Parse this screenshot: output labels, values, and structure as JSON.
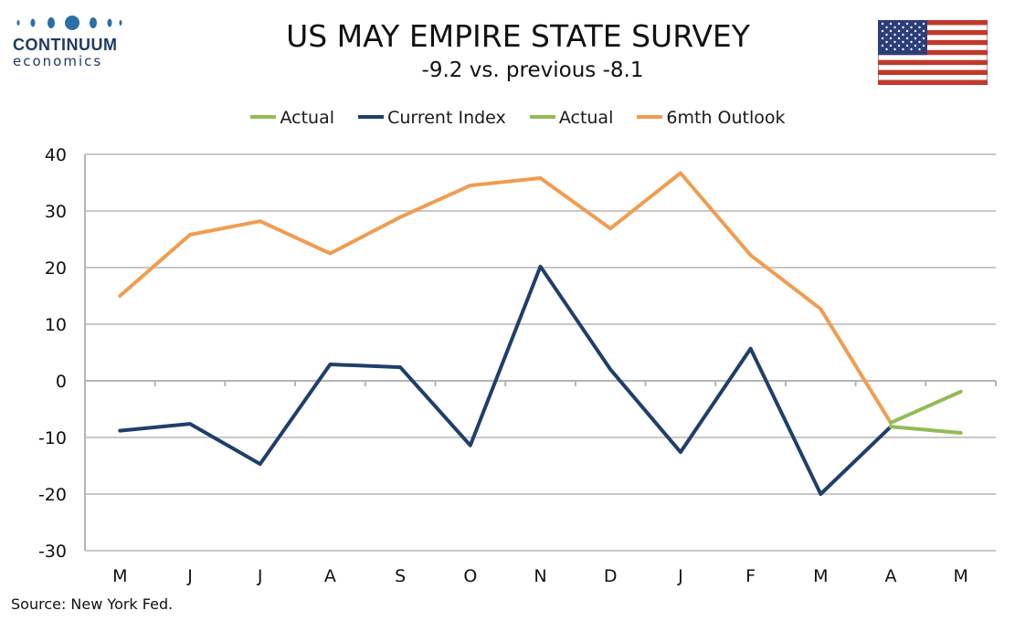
{
  "header": {
    "logo_name": "CONTINUUM",
    "logo_sub": "economics",
    "title": "US MAY EMPIRE STATE SURVEY",
    "subtitle": "-9.2 vs. previous -8.1"
  },
  "footer": {
    "source": "Source: New York Fed."
  },
  "flag_icon": "us-flag-icon",
  "chart_data": {
    "type": "line",
    "title": "US MAY EMPIRE STATE SURVEY",
    "subtitle": "-9.2 vs. previous -8.1",
    "categories": [
      "M",
      "J",
      "J",
      "A",
      "S",
      "O",
      "N",
      "D",
      "J",
      "F",
      "M",
      "A",
      "M"
    ],
    "ylim": [
      -30,
      40
    ],
    "yticks": [
      40,
      30,
      20,
      10,
      0,
      -10,
      -20,
      -30
    ],
    "grid": true,
    "legend_position": "top",
    "series": [
      {
        "name": "Actual",
        "color": "#93bb55",
        "values": [
          null,
          null,
          null,
          null,
          null,
          null,
          null,
          null,
          null,
          null,
          null,
          -8.1,
          -9.2
        ]
      },
      {
        "name": "Current Index",
        "color": "#1f3f6b",
        "values": [
          -8.8,
          -7.6,
          -14.7,
          2.9,
          2.4,
          -11.4,
          20.2,
          2.0,
          -12.6,
          5.7,
          -20.0,
          -8.1,
          null
        ]
      },
      {
        "name": "Actual",
        "color": "#93bb55",
        "values": [
          null,
          null,
          null,
          null,
          null,
          null,
          null,
          null,
          null,
          null,
          null,
          -7.4,
          -1.9
        ]
      },
      {
        "name": "6mth Outlook",
        "color": "#f09d51",
        "values": [
          15.0,
          25.8,
          28.2,
          22.5,
          28.9,
          34.5,
          35.8,
          26.9,
          36.7,
          22.2,
          12.7,
          -7.4,
          null
        ]
      }
    ]
  }
}
